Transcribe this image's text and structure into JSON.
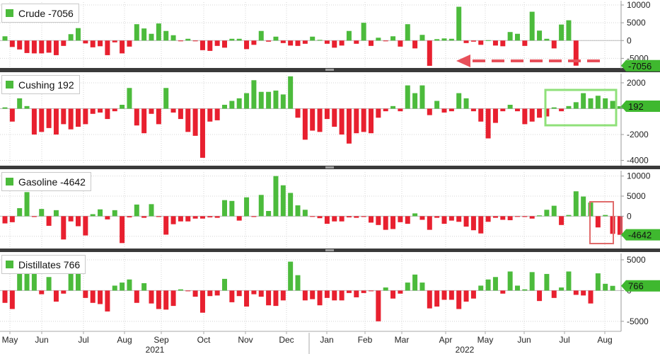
{
  "chart_data": {
    "type": "bar",
    "colors": {
      "positive": "#4cbb3c",
      "negative": "#e8202f",
      "label_bg": "#3fb82f",
      "arrow": "#e8505a",
      "highlight_green": "#8fe07a",
      "highlight_red": "#e06b6b"
    },
    "x_tick_labels": [
      "May",
      "Jun",
      "Jul",
      "Aug",
      "Sep",
      "Oct",
      "Nov",
      "Dec",
      "Jan",
      "Feb",
      "Mar",
      "Apr",
      "May",
      "Jun",
      "Jul",
      "Aug"
    ],
    "year_labels": [
      "2021",
      "2022"
    ],
    "panels": [
      {
        "name": "Crude",
        "legend": "Crude -7056",
        "last_value_label": "-7056",
        "y_ticks": [
          "10000",
          "5000",
          "0",
          "-5000"
        ],
        "ylim": [
          -7500,
          10800
        ],
        "values": [
          1200,
          -1800,
          -2500,
          -3500,
          -3600,
          -3600,
          -3400,
          -4100,
          -1500,
          1800,
          3500,
          -800,
          -1900,
          -1600,
          -4100,
          -500,
          -3600,
          -1700,
          4600,
          3400,
          1900,
          4800,
          2700,
          1500,
          -100,
          500,
          -100,
          -2700,
          -2900,
          -1500,
          -2000,
          500,
          500,
          -2400,
          -1200,
          2700,
          -300,
          1100,
          -700,
          -1400,
          -1500,
          -900,
          1100,
          200,
          -900,
          -2000,
          -1400,
          2700,
          -900,
          5000,
          -1500,
          800,
          -200,
          1200,
          -1700,
          4600,
          -2200,
          1600,
          -7100,
          400,
          600,
          500,
          9500,
          -700,
          -300,
          -1200,
          100,
          -1400,
          -1600,
          2400,
          1900,
          -1500,
          8100,
          2800,
          500,
          -2200,
          4500,
          5700,
          -7056
        ]
      },
      {
        "name": "Cushing",
        "legend": "Cushing 192",
        "last_value_label": "192",
        "y_ticks": [
          "2000",
          "0",
          "-2000",
          "-4000"
        ],
        "ylim": [
          -4300,
          2600
        ],
        "values": [
          100,
          -1000,
          800,
          200,
          -2000,
          -1800,
          -1500,
          -2000,
          -1200,
          -1600,
          -1400,
          -1200,
          -400,
          -300,
          -800,
          -200,
          300,
          1600,
          -1300,
          -1900,
          -400,
          -1200,
          1600,
          -300,
          -800,
          -1800,
          -2100,
          -3800,
          -1000,
          -900,
          300,
          600,
          800,
          1200,
          2200,
          1300,
          1300,
          1400,
          1100,
          2500,
          -700,
          -2400,
          -1700,
          -1800,
          -800,
          -1400,
          -2000,
          -2700,
          -1900,
          -1800,
          -1900,
          -700,
          -200,
          200,
          -200,
          1800,
          1200,
          1800,
          -500,
          600,
          -300,
          -200,
          1200,
          800,
          -200,
          -1000,
          -2300,
          -1100,
          -200,
          300,
          -200,
          -1200,
          -1000,
          -700,
          -600,
          100,
          -200,
          200,
          500,
          1200,
          800,
          1000,
          800,
          600,
          192
        ]
      },
      {
        "name": "Gasoline",
        "legend": "Gasoline -4642",
        "last_value_label": "-4642",
        "y_ticks": [
          "10000",
          "5000",
          "0",
          "-5000"
        ],
        "ylim": [
          -7700,
          11000
        ],
        "values": [
          -1800,
          -1500,
          2000,
          6000,
          -200,
          1800,
          -2400,
          1500,
          -5800,
          -1300,
          -2500,
          -4800,
          500,
          1700,
          -800,
          1500,
          -6700,
          -300,
          2900,
          -400,
          3000,
          -200,
          -4600,
          -2000,
          -1300,
          -1300,
          -600,
          -600,
          -300,
          -400,
          4000,
          3800,
          -1100,
          4700,
          -200,
          5300,
          1300,
          10000,
          7700,
          5800,
          2700,
          1600,
          -100,
          -500,
          -1900,
          -1300,
          -1300,
          -300,
          -400,
          -200,
          -1600,
          -2200,
          -3400,
          -3200,
          -1500,
          -1900,
          700,
          -900,
          -3400,
          -400,
          -1900,
          -1100,
          -1400,
          -2600,
          -3500,
          -4300,
          -1400,
          -400,
          -900,
          -1000,
          -100,
          -200,
          -600,
          200,
          1600,
          2600,
          -2200,
          300,
          6200,
          4900,
          3400,
          -2800,
          300,
          -4400,
          -4642
        ]
      },
      {
        "name": "Distillates",
        "legend": "Distillates 766",
        "last_value_label": "766",
        "y_ticks": [
          "5000",
          "0",
          "-5000"
        ],
        "ylim": [
          -6400,
          5800
        ],
        "values": [
          -2000,
          -3000,
          4500,
          4300,
          4700,
          -600,
          2200,
          -1800,
          -500,
          2700,
          4200,
          -1200,
          -2000,
          -2200,
          -3400,
          800,
          1300,
          1800,
          -2000,
          1200,
          -2100,
          -3000,
          -3100,
          -2500,
          200,
          -100,
          -1000,
          -3600,
          -900,
          -800,
          1900,
          -1900,
          -900,
          -2600,
          -600,
          -1000,
          -2400,
          -2500,
          -1600,
          4700,
          2500,
          -1600,
          -1400,
          -2400,
          -1200,
          -1600,
          -1600,
          -400,
          -1100,
          -400,
          -100,
          -5000,
          500,
          -1300,
          -500,
          1300,
          2600,
          1300,
          -2900,
          -2600,
          -1500,
          -1500,
          -3000,
          -1800,
          -1300,
          800,
          1800,
          2200,
          -500,
          3100,
          800,
          200,
          3000,
          -1700,
          2700,
          -1200,
          500,
          3100,
          -700,
          -800,
          -2100,
          2800,
          1100,
          766
        ]
      }
    ]
  }
}
